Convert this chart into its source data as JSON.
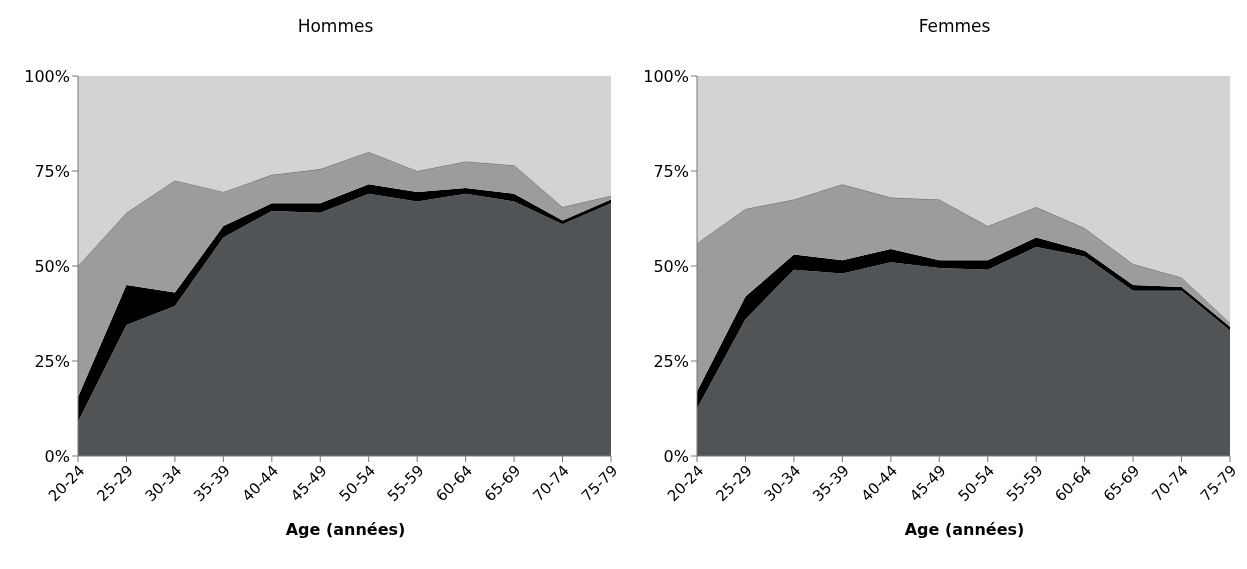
{
  "chart_data": [
    {
      "type": "area",
      "title": "Hommes",
      "xlabel": "Age (années)",
      "stacked": true,
      "grid": false,
      "legend": false,
      "categories": [
        "20-24",
        "25-29",
        "30-34",
        "35-39",
        "40-44",
        "45-49",
        "50-54",
        "55-59",
        "60-64",
        "65-69",
        "70-74",
        "75-79"
      ],
      "ylim": [
        0,
        100
      ],
      "yticks": [
        {
          "value": 0,
          "label": "0%"
        },
        {
          "value": 25,
          "label": "25%"
        },
        {
          "value": 50,
          "label": "50%"
        },
        {
          "value": 75,
          "label": "75%"
        },
        {
          "value": 100,
          "label": "100%"
        }
      ],
      "series": [
        {
          "color": "#515456",
          "values": [
            9,
            34.5,
            39.5,
            57.5,
            64.5,
            64,
            69,
            67,
            69,
            67,
            61,
            66.5
          ]
        },
        {
          "color": "#000000",
          "values": [
            6.5,
            10.5,
            3.5,
            3,
            2,
            2.5,
            2.5,
            2.5,
            1.5,
            2,
            1,
            1
          ]
        },
        {
          "color": "#9a9c9d",
          "values": [
            34.5,
            19,
            29.5,
            9,
            7.5,
            9,
            8.5,
            5.5,
            7,
            7.5,
            3.5,
            1
          ]
        },
        {
          "color": "#d2d3d2",
          "values": [
            50,
            36,
            27.5,
            30.5,
            26,
            24.5,
            20,
            25,
            22.5,
            23.5,
            34.5,
            31.5
          ]
        }
      ]
    },
    {
      "type": "area",
      "title": "Femmes",
      "xlabel": "Age (années)",
      "stacked": true,
      "grid": false,
      "legend": false,
      "categories": [
        "20-24",
        "25-29",
        "30-34",
        "35-39",
        "40-44",
        "45-49",
        "50-54",
        "55-59",
        "60-64",
        "65-69",
        "70-74",
        "75-79"
      ],
      "ylim": [
        0,
        100
      ],
      "yticks": [
        {
          "value": 0,
          "label": "0%"
        },
        {
          "value": 25,
          "label": "25%"
        },
        {
          "value": 50,
          "label": "50%"
        },
        {
          "value": 75,
          "label": "75%"
        },
        {
          "value": 100,
          "label": "100%"
        }
      ],
      "series": [
        {
          "color": "#515456",
          "values": [
            12.5,
            36,
            49,
            48,
            51,
            49.5,
            49,
            55,
            52.5,
            43.5,
            43.5,
            33
          ]
        },
        {
          "color": "#000000",
          "values": [
            4.5,
            6,
            4,
            3.5,
            3.5,
            2,
            2.5,
            2.5,
            1.5,
            1.5,
            1,
            1
          ]
        },
        {
          "color": "#9a9c9d",
          "values": [
            39,
            23,
            14.5,
            20,
            13.5,
            16,
            9,
            8,
            6,
            5.5,
            2.5,
            1
          ]
        },
        {
          "color": "#d2d3d2",
          "values": [
            44,
            35,
            32.5,
            28.5,
            32,
            32.5,
            39.5,
            34.5,
            40,
            49.5,
            53,
            65
          ]
        }
      ]
    }
  ]
}
